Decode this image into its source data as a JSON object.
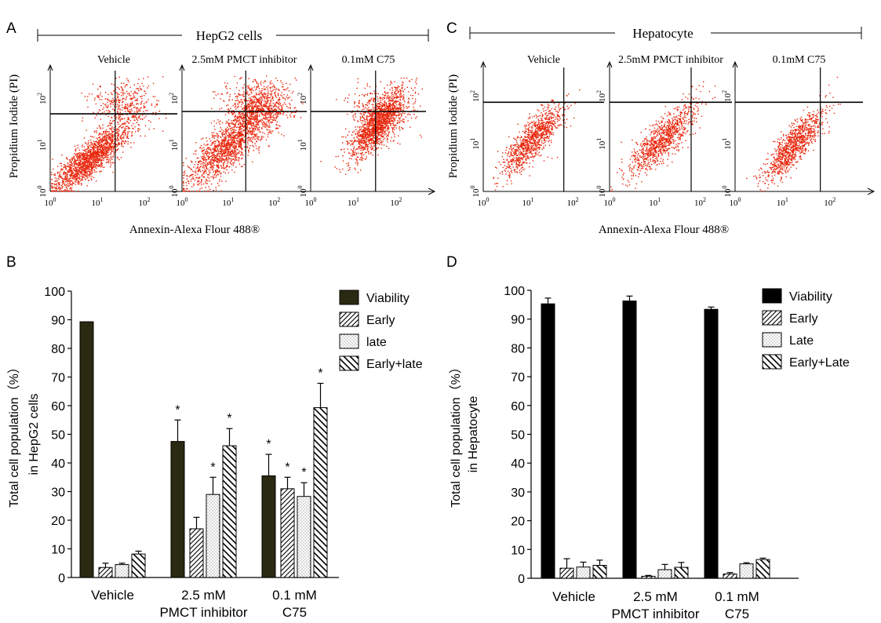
{
  "panel_labels": {
    "A": "A",
    "B": "B",
    "C": "C",
    "D": "D"
  },
  "chart_data": [
    {
      "type": "scatter",
      "panel": "A",
      "title": "HepG2 cells",
      "xlabel": "Annexin-Alexa  Flour 488®",
      "ylabel": "Propidium Iodide (PI)",
      "x_ticks": [
        "10",
        "10",
        "10"
      ],
      "x_tick_exponents": [
        "0",
        "1",
        "2"
      ],
      "y_ticks": [
        "10",
        "10",
        "10"
      ],
      "y_tick_exponents": [
        "0",
        "1",
        "2"
      ],
      "subplots": [
        {
          "title": "Vehicle",
          "gate_x": 1.38,
          "gate_y": 1.67,
          "cluster": "early-late-tail"
        },
        {
          "title": "2.5mM PMCT inhibitor",
          "gate_x": 1.38,
          "gate_y": 1.72,
          "cluster": "late-shifted"
        },
        {
          "title": "0.1mM C75",
          "gate_x": 1.52,
          "gate_y": 1.72,
          "cluster": "late"
        }
      ],
      "point_color": "#e8260c"
    },
    {
      "type": "scatter",
      "panel": "C",
      "title": "Hepatocyte",
      "xlabel": "Annexin-Alexa  Flour 488®",
      "ylabel": "Propidium Iodide (PI)",
      "x_ticks": [
        "10",
        "10",
        "10"
      ],
      "x_tick_exponents": [
        "0",
        "1",
        "2"
      ],
      "y_ticks": [
        "10",
        "10",
        "10"
      ],
      "y_tick_exponents": [
        "0",
        "1",
        "2"
      ],
      "subplots": [
        {
          "title": "Vehicle",
          "gate_x": 1.8,
          "gate_y": 1.87,
          "cluster": "compact"
        },
        {
          "title": "2.5mM PMCT inhibitor",
          "gate_x": 1.8,
          "gate_y": 1.87,
          "cluster": "compact"
        },
        {
          "title": "0.1mM C75",
          "gate_x": 1.8,
          "gate_y": 1.87,
          "cluster": "compact"
        }
      ],
      "point_color": "#e8260c"
    },
    {
      "type": "bar",
      "panel": "B",
      "ylabel_lines": [
        "Total cell population（%）",
        "in HepG2 cells"
      ],
      "ylim": [
        0,
        100
      ],
      "yticks": [
        0,
        10,
        20,
        30,
        40,
        50,
        60,
        70,
        80,
        90,
        100
      ],
      "category_lines": [
        [
          "Vehicle"
        ],
        [
          "2.5 mM",
          "PMCT inhibitor"
        ],
        [
          "0.1 mM",
          "C75"
        ]
      ],
      "series": [
        {
          "name": "Viability",
          "values": [
            89.3,
            47.5,
            35.5
          ],
          "errors": [
            0,
            7.5,
            7.5
          ],
          "significant": [
            false,
            true,
            true
          ],
          "fill": "solid",
          "color": "#2a2a12"
        },
        {
          "name": "Early",
          "values": [
            3.5,
            17,
            31
          ],
          "errors": [
            1.5,
            4,
            4
          ],
          "significant": [
            false,
            false,
            true
          ],
          "fill": "hatch"
        },
        {
          "name": "late",
          "values": [
            4.5,
            29,
            28.3
          ],
          "errors": [
            0.5,
            6,
            4.8
          ],
          "significant": [
            false,
            true,
            true
          ],
          "fill": "dots"
        },
        {
          "name": "Early+late",
          "values": [
            8.2,
            46,
            59.3
          ],
          "errors": [
            1,
            6,
            8.5
          ],
          "significant": [
            false,
            true,
            true
          ],
          "fill": "backhatch"
        }
      ],
      "significance_mark": "*",
      "legend_position": "top-right"
    },
    {
      "type": "bar",
      "panel": "D",
      "ylabel_lines": [
        "Total cell population（%）",
        "in Hepatocyte"
      ],
      "ylim": [
        0,
        100
      ],
      "yticks": [
        0,
        10,
        20,
        30,
        40,
        50,
        60,
        70,
        80,
        90,
        100
      ],
      "category_lines": [
        [
          "Vehicle"
        ],
        [
          "2.5 mM",
          "PMCT inhibitor"
        ],
        [
          "0.1 mM",
          "C75"
        ]
      ],
      "series": [
        {
          "name": "Viability",
          "values": [
            95.3,
            96.3,
            93.4
          ],
          "errors": [
            2,
            1.7,
            0.8
          ],
          "fill": "solid",
          "color": "#000000"
        },
        {
          "name": "Early",
          "values": [
            3.5,
            0.7,
            1.5
          ],
          "errors": [
            3.3,
            0.3,
            0.5
          ],
          "fill": "hatch"
        },
        {
          "name": "Late",
          "values": [
            3.9,
            3,
            5
          ],
          "errors": [
            1.7,
            1.8,
            0.4
          ],
          "fill": "dots"
        },
        {
          "name": "Early+Late",
          "values": [
            4.5,
            3.8,
            6.5
          ],
          "errors": [
            1.8,
            1.7,
            0.5
          ],
          "fill": "backhatch"
        }
      ],
      "legend_position": "top-right"
    }
  ]
}
